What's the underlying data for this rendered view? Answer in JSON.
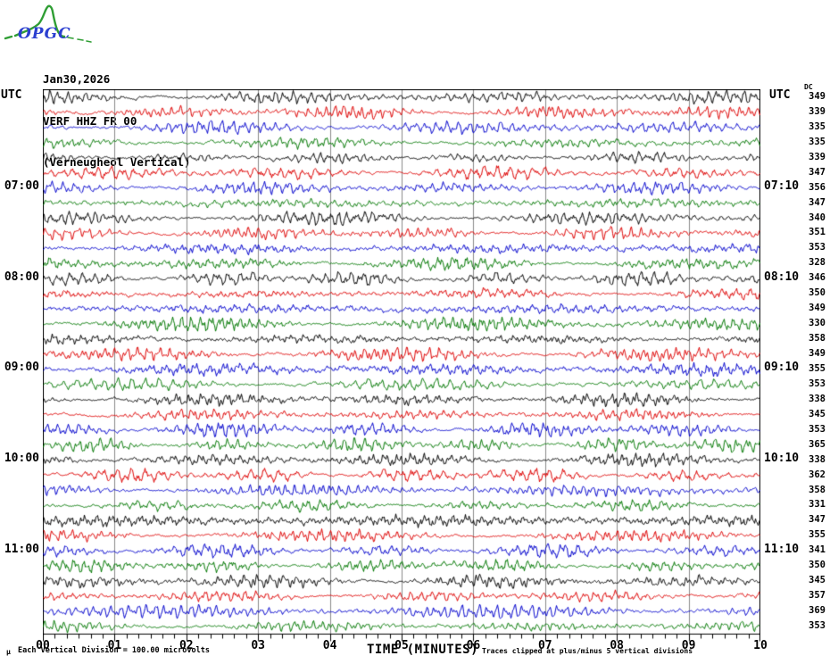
{
  "logo": {
    "text": "OPGC",
    "curve_color": "#2f9e34",
    "text_color": "#2b3fd0"
  },
  "header": {
    "date": "Jan30,2026",
    "station": "VERF HHZ FR 00",
    "subtitle": "(Verneugheol Vertical)"
  },
  "axis": {
    "left_header": "UTC",
    "right_header": "UTC",
    "dc_header": "DC",
    "xlabel": "TIME (MINUTES)",
    "x_ticks": [
      "00",
      "01",
      "02",
      "03",
      "04",
      "05",
      "06",
      "07",
      "08",
      "09",
      "10"
    ]
  },
  "footer": {
    "corner_glyph": "µ",
    "scale_note": "Each Vertical Division =  100.00 microvolts",
    "clip_note": "Traces clipped at plus/minus 5 vertical divisions"
  },
  "chart_data": {
    "type": "line",
    "subtype": "helicorder-seismogram",
    "title": "VERF HHZ FR 00 (Verneugheol Vertical) Jan30,2026",
    "xlabel": "TIME (MINUTES)",
    "x_range_minutes": [
      0,
      10
    ],
    "minor_ticks_per_minute": 6,
    "row_duration_minutes": 10,
    "grid": true,
    "grid_color": "#8a8a8a",
    "colors": {
      "black": "#000000",
      "red": "#dd0000",
      "blue": "#0000cc",
      "green": "#007700"
    },
    "color_cycle": [
      "black",
      "red",
      "blue",
      "green"
    ],
    "clip_divisions": 5,
    "signal_character": "continuous microseismic noise, no distinct events, clipped at +/-5 divisions",
    "rows": [
      {
        "start_utc": "06:00",
        "left_label": "",
        "right_label": "",
        "color": "black",
        "dc": 349
      },
      {
        "start_utc": "06:10",
        "left_label": "",
        "right_label": "",
        "color": "red",
        "dc": 339
      },
      {
        "start_utc": "06:20",
        "left_label": "",
        "right_label": "",
        "color": "blue",
        "dc": 335
      },
      {
        "start_utc": "06:30",
        "left_label": "",
        "right_label": "",
        "color": "green",
        "dc": 335
      },
      {
        "start_utc": "06:40",
        "left_label": "",
        "right_label": "",
        "color": "black",
        "dc": 339
      },
      {
        "start_utc": "06:50",
        "left_label": "",
        "right_label": "",
        "color": "red",
        "dc": 347
      },
      {
        "start_utc": "07:00",
        "left_label": "07:00",
        "right_label": "07:10",
        "color": "blue",
        "dc": 356
      },
      {
        "start_utc": "07:10",
        "left_label": "",
        "right_label": "",
        "color": "green",
        "dc": 347
      },
      {
        "start_utc": "07:20",
        "left_label": "",
        "right_label": "",
        "color": "black",
        "dc": 340
      },
      {
        "start_utc": "07:30",
        "left_label": "",
        "right_label": "",
        "color": "red",
        "dc": 351
      },
      {
        "start_utc": "07:40",
        "left_label": "",
        "right_label": "",
        "color": "blue",
        "dc": 353
      },
      {
        "start_utc": "07:50",
        "left_label": "",
        "right_label": "",
        "color": "green",
        "dc": 328
      },
      {
        "start_utc": "08:00",
        "left_label": "08:00",
        "right_label": "08:10",
        "color": "black",
        "dc": 346
      },
      {
        "start_utc": "08:10",
        "left_label": "",
        "right_label": "",
        "color": "red",
        "dc": 350
      },
      {
        "start_utc": "08:20",
        "left_label": "",
        "right_label": "",
        "color": "blue",
        "dc": 349
      },
      {
        "start_utc": "08:30",
        "left_label": "",
        "right_label": "",
        "color": "green",
        "dc": 330
      },
      {
        "start_utc": "08:40",
        "left_label": "",
        "right_label": "",
        "color": "black",
        "dc": 358
      },
      {
        "start_utc": "08:50",
        "left_label": "",
        "right_label": "",
        "color": "red",
        "dc": 349
      },
      {
        "start_utc": "09:00",
        "left_label": "09:00",
        "right_label": "09:10",
        "color": "blue",
        "dc": 355
      },
      {
        "start_utc": "09:10",
        "left_label": "",
        "right_label": "",
        "color": "green",
        "dc": 353
      },
      {
        "start_utc": "09:20",
        "left_label": "",
        "right_label": "",
        "color": "black",
        "dc": 338
      },
      {
        "start_utc": "09:30",
        "left_label": "",
        "right_label": "",
        "color": "red",
        "dc": 345
      },
      {
        "start_utc": "09:40",
        "left_label": "",
        "right_label": "",
        "color": "blue",
        "dc": 353
      },
      {
        "start_utc": "09:50",
        "left_label": "",
        "right_label": "",
        "color": "green",
        "dc": 365
      },
      {
        "start_utc": "10:00",
        "left_label": "10:00",
        "right_label": "10:10",
        "color": "black",
        "dc": 338
      },
      {
        "start_utc": "10:10",
        "left_label": "",
        "right_label": "",
        "color": "red",
        "dc": 362
      },
      {
        "start_utc": "10:20",
        "left_label": "",
        "right_label": "",
        "color": "blue",
        "dc": 358
      },
      {
        "start_utc": "10:30",
        "left_label": "",
        "right_label": "",
        "color": "green",
        "dc": 331
      },
      {
        "start_utc": "10:40",
        "left_label": "",
        "right_label": "",
        "color": "black",
        "dc": 347
      },
      {
        "start_utc": "10:50",
        "left_label": "",
        "right_label": "",
        "color": "red",
        "dc": 355
      },
      {
        "start_utc": "11:00",
        "left_label": "11:00",
        "right_label": "11:10",
        "color": "blue",
        "dc": 341
      },
      {
        "start_utc": "11:10",
        "left_label": "",
        "right_label": "",
        "color": "green",
        "dc": 350
      },
      {
        "start_utc": "11:20",
        "left_label": "",
        "right_label": "",
        "color": "black",
        "dc": 345
      },
      {
        "start_utc": "11:30",
        "left_label": "",
        "right_label": "",
        "color": "red",
        "dc": 357
      },
      {
        "start_utc": "11:40",
        "left_label": "",
        "right_label": "",
        "color": "blue",
        "dc": 369
      },
      {
        "start_utc": "11:50",
        "left_label": "",
        "right_label": "",
        "color": "green",
        "dc": 353
      }
    ]
  }
}
